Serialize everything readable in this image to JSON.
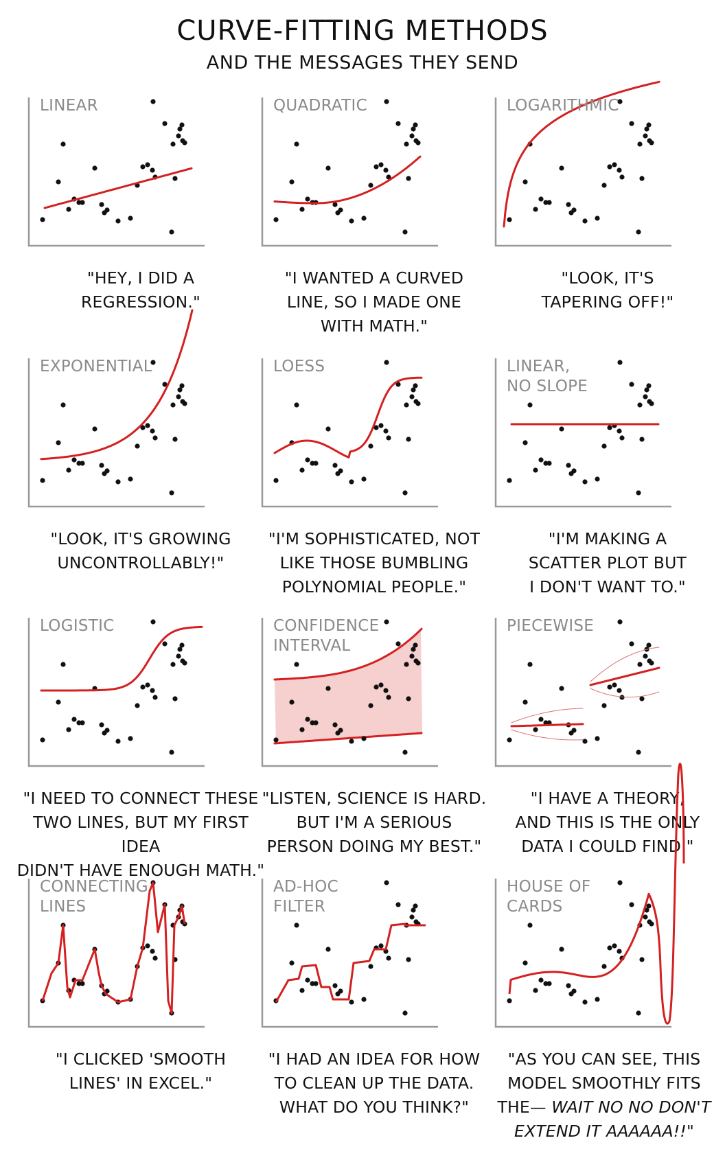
{
  "header": {
    "title": "CURVE-FITTING METHODS",
    "subtitle": "AND THE MESSAGES THEY SEND"
  },
  "colors": {
    "curve": "#d42020",
    "band": "#f6cfcf",
    "axis": "#999999",
    "point": "#111111",
    "label": "#8a8a8a"
  },
  "panels": [
    {
      "label": "LINEAR",
      "caption": "\"HEY, I DID A\nREGRESSION.\""
    },
    {
      "label": "QUADRATIC",
      "caption": "\"I WANTED A CURVED\nLINE, SO I MADE ONE\nWITH MATH.\""
    },
    {
      "label": "LOGARITHMIC",
      "caption": "\"LOOK, IT'S\nTAPERING OFF!\""
    },
    {
      "label": "EXPONENTIAL",
      "caption": "\"LOOK, IT'S GROWING\nUNCONTROLLABLY!\""
    },
    {
      "label": "LOESS",
      "caption": "\"I'M SOPHISTICATED, NOT\nLIKE THOSE BUMBLING\nPOLYNOMIAL PEOPLE.\""
    },
    {
      "label": "LINEAR,\nNO SLOPE",
      "caption": "\"I'M MAKING A\nSCATTER PLOT BUT\nI DON'T WANT TO.\""
    },
    {
      "label": "LOGISTIC",
      "caption": "\"I NEED TO CONNECT THESE\nTWO LINES, BUT MY FIRST IDEA\nDIDN'T HAVE ENOUGH MATH.\""
    },
    {
      "label": "CONFIDENCE\nINTERVAL",
      "caption": "\"LISTEN, SCIENCE IS HARD.\nBUT I'M A SERIOUS\nPERSON DOING MY BEST.\""
    },
    {
      "label": "PIECEWISE",
      "caption": "\"I HAVE A THEORY,\nAND THIS IS THE ONLY\nDATA I COULD FIND.\""
    },
    {
      "label": "CONNECTING\nLINES",
      "caption": "\"I CLICKED 'SMOOTH\nLINES' IN EXCEL.\""
    },
    {
      "label": "AD-HOC\nFILTER",
      "caption": "\"I HAD AN IDEA FOR HOW\nTO CLEAN UP THE DATA.\nWHAT DO YOU THINK?\""
    },
    {
      "label": "HOUSE OF\nCARDS",
      "caption_main": "\"AS YOU CAN SEE, THIS\nMODEL SMOOTHLY FITS\nTHE— ",
      "caption_em": "WAIT NO NO DON'T\nEXTEND IT AAAAAA!!",
      "caption_end": "\""
    }
  ]
}
